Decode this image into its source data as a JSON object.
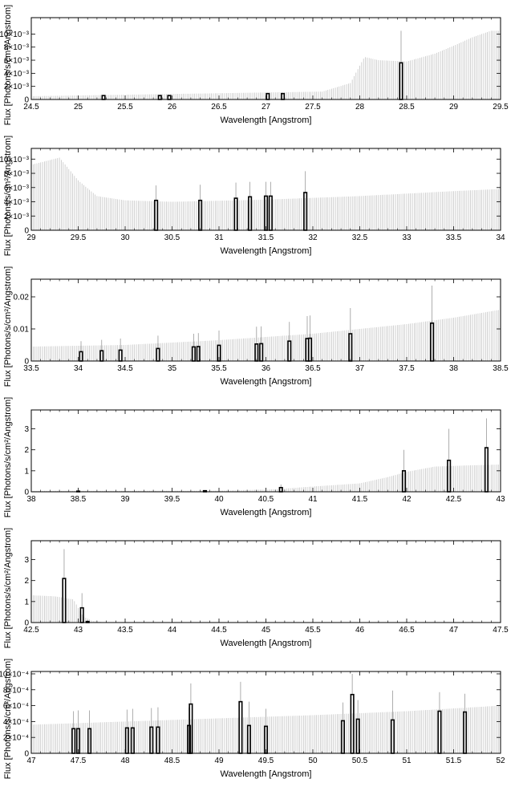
{
  "chart_data": [
    {
      "type": "bar",
      "xlabel": "Wavelength [Angstrom]",
      "ylabel": "Flux [Photons/s/cm²/Angstrom]",
      "xlim": [
        24.5,
        29.5
      ],
      "ylim": [
        0,
        0.0125
      ],
      "x_ticks": [
        "24.5",
        "25",
        "25.5",
        "26",
        "26.5",
        "27",
        "27.5",
        "28",
        "28.5",
        "29",
        "29.5"
      ],
      "y_ticks": [
        {
          "value": 0,
          "label": "0"
        },
        {
          "value": 0.002,
          "label": "2×10⁻³"
        },
        {
          "value": 0.004,
          "label": "4×10⁻³"
        },
        {
          "value": 0.006,
          "label": "6×10⁻³"
        },
        {
          "value": 0.008,
          "label": "8×10⁻³"
        },
        {
          "value": 0.01,
          "label": "10×10⁻³"
        }
      ],
      "background_error": [
        [
          24.5,
          0.0005
        ],
        [
          27.6,
          0.0012
        ],
        [
          27.9,
          0.0025
        ],
        [
          28.05,
          0.0065
        ],
        [
          28.2,
          0.006
        ],
        [
          28.5,
          0.0058
        ],
        [
          28.8,
          0.007
        ],
        [
          29.0,
          0.0082
        ],
        [
          29.2,
          0.0095
        ],
        [
          29.4,
          0.0105
        ]
      ],
      "bins": [
        [
          25.27,
          0.0006,
          0.0006
        ],
        [
          25.87,
          0.0006,
          0.0006
        ],
        [
          25.97,
          0.0006,
          0.0006
        ],
        [
          27.02,
          0.0009,
          0.0009
        ],
        [
          27.18,
          0.0009,
          0.0009
        ],
        [
          28.44,
          0.0056,
          0.0105
        ]
      ]
    },
    {
      "type": "bar",
      "xlabel": "Wavelength [Angstrom]",
      "ylabel": "Flux [Photons/s/cm²/Angstrom]",
      "xlim": [
        29,
        34
      ],
      "ylim": [
        0,
        0.0115
      ],
      "x_ticks": [
        "29",
        "29.5",
        "30",
        "30.5",
        "31",
        "31.5",
        "32",
        "32.5",
        "33",
        "33.5",
        "34"
      ],
      "y_ticks": [
        {
          "value": 0,
          "label": "0"
        },
        {
          "value": 0.002,
          "label": "2×10⁻³"
        },
        {
          "value": 0.004,
          "label": "4×10⁻³"
        },
        {
          "value": 0.006,
          "label": "6×10⁻³"
        },
        {
          "value": 0.008,
          "label": "8×10⁻³"
        },
        {
          "value": 0.01,
          "label": "10×10⁻³"
        }
      ],
      "background_error": [
        [
          29.0,
          0.0092
        ],
        [
          29.3,
          0.0102
        ],
        [
          29.5,
          0.007
        ],
        [
          29.7,
          0.0048
        ],
        [
          30.0,
          0.0042
        ],
        [
          30.5,
          0.004
        ],
        [
          31.5,
          0.0043
        ],
        [
          32.5,
          0.0048
        ],
        [
          33.5,
          0.0055
        ],
        [
          34.0,
          0.0058
        ]
      ],
      "bins": [
        [
          30.33,
          0.0042,
          0.0063
        ],
        [
          30.8,
          0.0042,
          0.0064
        ],
        [
          31.18,
          0.0045,
          0.0067
        ],
        [
          31.33,
          0.0047,
          0.0068
        ],
        [
          31.5,
          0.0048,
          0.0068
        ],
        [
          31.55,
          0.0048,
          0.0068
        ],
        [
          31.92,
          0.0053,
          0.0083
        ]
      ]
    },
    {
      "type": "bar",
      "xlabel": "Wavelength [Angstrom]",
      "ylabel": "Flux [Photons/s/cm²/Angstrom]",
      "xlim": [
        33.5,
        38.5
      ],
      "ylim": [
        0,
        0.0255
      ],
      "x_ticks": [
        "33.5",
        "34",
        "34.5",
        "35",
        "35.5",
        "36",
        "36.5",
        "37",
        "37.5",
        "38",
        "38.5"
      ],
      "y_ticks": [
        {
          "value": 0,
          "label": "0"
        },
        {
          "value": 0.01,
          "label": "0.01"
        },
        {
          "value": 0.02,
          "label": "0.02"
        }
      ],
      "background_error": [
        [
          33.5,
          0.0045
        ],
        [
          34.5,
          0.005
        ],
        [
          35.5,
          0.0065
        ],
        [
          36.5,
          0.0085
        ],
        [
          37.0,
          0.01
        ],
        [
          37.5,
          0.0115
        ],
        [
          38.0,
          0.0135
        ],
        [
          38.5,
          0.016
        ]
      ],
      "bins": [
        [
          34.03,
          0.0029,
          0.0062
        ],
        [
          34.25,
          0.0032,
          0.0066
        ],
        [
          34.45,
          0.0034,
          0.007
        ],
        [
          34.85,
          0.0039,
          0.0079
        ],
        [
          35.23,
          0.0044,
          0.0085
        ],
        [
          35.28,
          0.0045,
          0.0087
        ],
        [
          35.5,
          0.0049,
          0.0095
        ],
        [
          35.9,
          0.0053,
          0.0107
        ],
        [
          35.95,
          0.0054,
          0.0108
        ],
        [
          36.25,
          0.0062,
          0.0122
        ],
        [
          36.44,
          0.007,
          0.014
        ],
        [
          36.47,
          0.0071,
          0.0142
        ],
        [
          36.9,
          0.0085,
          0.0165
        ],
        [
          37.77,
          0.0118,
          0.0235
        ]
      ]
    },
    {
      "type": "bar",
      "xlabel": "Wavelength [Angstrom]",
      "ylabel": "Flux [Photons/s/cm²/Angstrom]",
      "xlim": [
        38,
        43
      ],
      "ylim": [
        0,
        3.9
      ],
      "x_ticks": [
        "38",
        "38.5",
        "39",
        "39.5",
        "40",
        "40.5",
        "41",
        "41.5",
        "42",
        "42.5",
        "43"
      ],
      "y_ticks": [
        {
          "value": 0,
          "label": "0"
        },
        {
          "value": 1,
          "label": "1"
        },
        {
          "value": 2,
          "label": "2"
        },
        {
          "value": 3,
          "label": "3"
        }
      ],
      "background_error": [
        [
          38.0,
          0.04
        ],
        [
          40.0,
          0.05
        ],
        [
          40.6,
          0.12
        ],
        [
          41.0,
          0.25
        ],
        [
          41.5,
          0.4
        ],
        [
          41.8,
          0.7
        ],
        [
          42.0,
          0.95
        ],
        [
          42.3,
          1.2
        ],
        [
          42.6,
          1.25
        ],
        [
          43.0,
          1.3
        ]
      ],
      "bins": [
        [
          38.5,
          0.03,
          0.05
        ],
        [
          39.85,
          0.05,
          0.08
        ],
        [
          40.66,
          0.2,
          0.35
        ],
        [
          41.97,
          1.0,
          2.0
        ],
        [
          42.45,
          1.5,
          3.0
        ],
        [
          42.85,
          2.1,
          3.5
        ]
      ]
    },
    {
      "type": "bar",
      "xlabel": "Wavelength [Angstrom]",
      "ylabel": "Flux [Photons/s/cm²/Angstrom]",
      "xlim": [
        42.5,
        47.5
      ],
      "ylim": [
        0,
        3.9
      ],
      "x_ticks": [
        "42.5",
        "43",
        "43.5",
        "44",
        "44.5",
        "45",
        "45.5",
        "46",
        "46.5",
        "47",
        "47.5"
      ],
      "y_ticks": [
        {
          "value": 0,
          "label": "0"
        },
        {
          "value": 1,
          "label": "1"
        },
        {
          "value": 2,
          "label": "2"
        },
        {
          "value": 3,
          "label": "3"
        }
      ],
      "background_error": [
        [
          42.5,
          1.3
        ],
        [
          42.75,
          1.25
        ],
        [
          42.95,
          1.1
        ],
        [
          43.05,
          0.3
        ],
        [
          43.15,
          0.08
        ],
        [
          43.3,
          0.0
        ]
      ],
      "bins": [
        [
          42.85,
          2.1,
          3.5
        ],
        [
          43.04,
          0.7,
          1.4
        ],
        [
          43.1,
          0.05,
          0.1
        ]
      ]
    },
    {
      "type": "bar",
      "xlabel": "Wavelength [Angstrom]",
      "ylabel": "Flux [Photons/s/cm²/Angstrom]",
      "xlim": [
        47,
        52
      ],
      "ylim": [
        0,
        0.00103
      ],
      "x_ticks": [
        "47",
        "47.5",
        "48",
        "48.5",
        "49",
        "49.5",
        "50",
        "50.5",
        "51",
        "51.5",
        "52"
      ],
      "y_ticks": [
        {
          "value": 0,
          "label": "0"
        },
        {
          "value": 0.0002,
          "label": "2×10⁻⁴"
        },
        {
          "value": 0.0004,
          "label": "4×10⁻⁴"
        },
        {
          "value": 0.0006,
          "label": "6×10⁻⁴"
        },
        {
          "value": 0.0008,
          "label": "8×10⁻⁴"
        },
        {
          "value": 0.001,
          "label": "10×10⁻⁴"
        }
      ],
      "background_error": [
        [
          47.0,
          0.00036
        ],
        [
          48.0,
          0.0004
        ],
        [
          49.0,
          0.00044
        ],
        [
          50.0,
          0.00048
        ],
        [
          51.0,
          0.00053
        ],
        [
          52.0,
          0.0006
        ]
      ],
      "bins": [
        [
          47.45,
          0.00031,
          0.00053
        ],
        [
          47.5,
          0.00031,
          0.00054
        ],
        [
          47.62,
          0.00031,
          0.00054
        ],
        [
          48.02,
          0.00032,
          0.00055
        ],
        [
          48.08,
          0.00032,
          0.00056
        ],
        [
          48.28,
          0.00033,
          0.00057
        ],
        [
          48.35,
          0.00033,
          0.00058
        ],
        [
          48.68,
          0.00035,
          0.00058
        ],
        [
          48.7,
          0.00062,
          0.00088
        ],
        [
          49.23,
          0.00065,
          0.0009
        ],
        [
          49.32,
          0.00035,
          0.00065
        ],
        [
          49.5,
          0.00034,
          0.00056
        ],
        [
          50.32,
          0.00041,
          0.00064
        ],
        [
          50.42,
          0.00074,
          0.001
        ],
        [
          50.48,
          0.00043,
          0.00067
        ],
        [
          50.85,
          0.00042,
          0.00079
        ],
        [
          51.35,
          0.00053,
          0.00077
        ],
        [
          51.62,
          0.00052,
          0.00075
        ]
      ]
    }
  ]
}
